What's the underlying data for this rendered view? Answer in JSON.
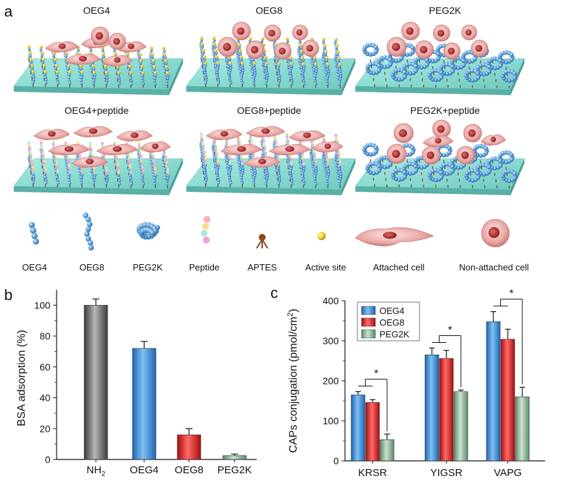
{
  "panels": {
    "a": {
      "label": "a",
      "scenes": [
        {
          "title": "OEG4",
          "kind": "oeg4",
          "peptide": false,
          "cells": "attached"
        },
        {
          "title": "OEG8",
          "kind": "oeg8",
          "peptide": false,
          "cells": "detached"
        },
        {
          "title": "PEG2K",
          "kind": "peg2k",
          "peptide": false,
          "cells": "detached"
        },
        {
          "title": "OEG4+peptide",
          "kind": "oeg4",
          "peptide": true,
          "cells": "attached"
        },
        {
          "title": "OEG8+peptide",
          "kind": "oeg8",
          "peptide": true,
          "cells": "attached"
        },
        {
          "title": "PEG2K+peptide",
          "kind": "peg2k",
          "peptide": true,
          "cells": "mixed"
        }
      ],
      "legend": [
        {
          "label": "OEG4",
          "icon": "oeg4-chain-icon"
        },
        {
          "label": "OEG8",
          "icon": "oeg8-chain-icon"
        },
        {
          "label": "PEG2K",
          "icon": "peg2k-coil-icon"
        },
        {
          "label": "Peptide",
          "icon": "peptide-icon"
        },
        {
          "label": "APTES",
          "icon": "aptes-icon"
        },
        {
          "label": "Active site",
          "icon": "active-site-icon"
        },
        {
          "label": "Attached cell",
          "icon": "attached-cell-icon"
        },
        {
          "label": "Non-attached cell",
          "icon": "non-attached-cell-icon"
        }
      ],
      "colors": {
        "substrate": "#7fd6cc",
        "chain": "#5a9fd8",
        "site": "#e8c81a",
        "cell": "#e9a8a6",
        "nucleus": "#b23a3a"
      }
    },
    "b": {
      "label": "b",
      "subscript": "2"
    },
    "c": {
      "label": "c",
      "ylabel_sup": "2",
      "significance": "*"
    }
  },
  "chart_data": [
    {
      "type": "bar",
      "panel": "b",
      "categories": [
        "NH2",
        "OEG4",
        "OEG8",
        "PEG2K"
      ],
      "values": [
        100,
        72,
        16,
        2.5
      ],
      "errors": [
        4,
        4.5,
        4,
        1
      ],
      "colors": [
        "#808080",
        "#3a8fd6",
        "#e02020",
        "#8fb39a"
      ],
      "title": "",
      "xlabel": "",
      "ylabel": "BSA adsorption (%)",
      "ylim": [
        0,
        110
      ],
      "yticks": [
        0,
        20,
        40,
        60,
        80,
        100
      ]
    },
    {
      "type": "bar",
      "panel": "c",
      "categories": [
        "KRSR",
        "YIGSR",
        "VAPG"
      ],
      "series": [
        {
          "name": "OEG4",
          "values": [
            165,
            265,
            348
          ],
          "errors": [
            8,
            17,
            25
          ],
          "color": "#3a8fd6"
        },
        {
          "name": "OEG8",
          "values": [
            146,
            256,
            304
          ],
          "errors": [
            7,
            20,
            25
          ],
          "color": "#e02020"
        },
        {
          "name": "PEG2K",
          "values": [
            53,
            173,
            160
          ],
          "errors": [
            14,
            4,
            24
          ],
          "color": "#8fb39a"
        }
      ],
      "title": "",
      "xlabel": "",
      "ylabel": "CAPs conjugation (pmol/cm2)",
      "ylabel_text": "CAPs conjugation (pmol/cm",
      "ylabel_close": ")",
      "ylim": [
        0,
        400
      ],
      "yticks": [
        0,
        100,
        200,
        300,
        400
      ],
      "legend_position": "top-left"
    }
  ]
}
